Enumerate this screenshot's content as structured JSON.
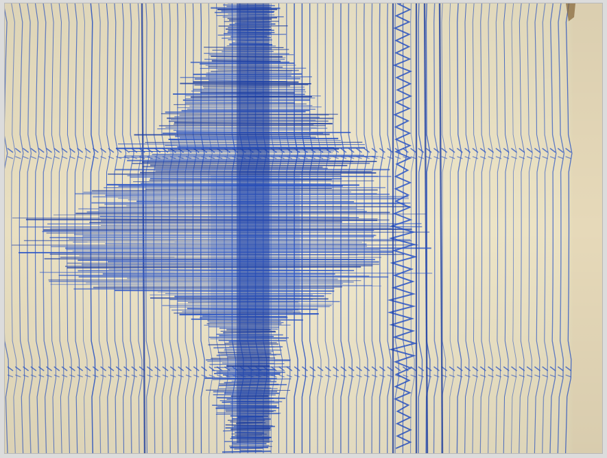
{
  "photo": {
    "subject": "seismograph-drum",
    "colors": {
      "paper": "#efe6c8",
      "paper_shadow": "#d9cfae",
      "ink": "#2a55c8",
      "ink_dark": "#1d3fa6",
      "frame": "#dcdcdc",
      "edge": "#e8dcc0"
    }
  }
}
